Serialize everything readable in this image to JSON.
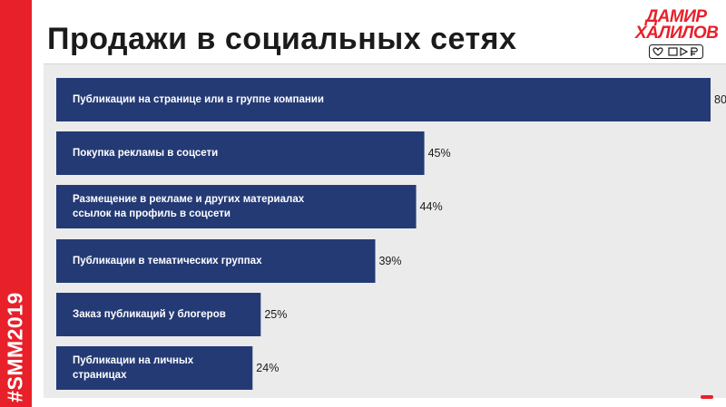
{
  "slide": {
    "title": "Продажи в социальных сетях",
    "hashtag": "#SMM2019",
    "brand": {
      "line1": "ДАМИР",
      "line2": "ХАЛИЛОВ"
    }
  },
  "colors": {
    "bar": "#243a75",
    "accent": "#e8202a",
    "chart_bg": "#ebebeb"
  },
  "chart_data": {
    "type": "bar",
    "orientation": "horizontal",
    "unit": "%",
    "grid": false,
    "legend": "none",
    "xlim": [
      0,
      80
    ],
    "categories": [
      "Публикации на странице или в группе компании",
      "Покупка рекламы в соцсети",
      "Размещение в рекламе и других материалах ссылок на профиль в соцсети",
      "Публикации в тематических группах",
      "Заказ публикаций у блогеров",
      "Публикации на личных страницах"
    ],
    "values": [
      80,
      45,
      44,
      39,
      25,
      24
    ],
    "value_labels": [
      "80",
      "45%",
      "44%",
      "39%",
      "25%",
      "24%"
    ]
  }
}
